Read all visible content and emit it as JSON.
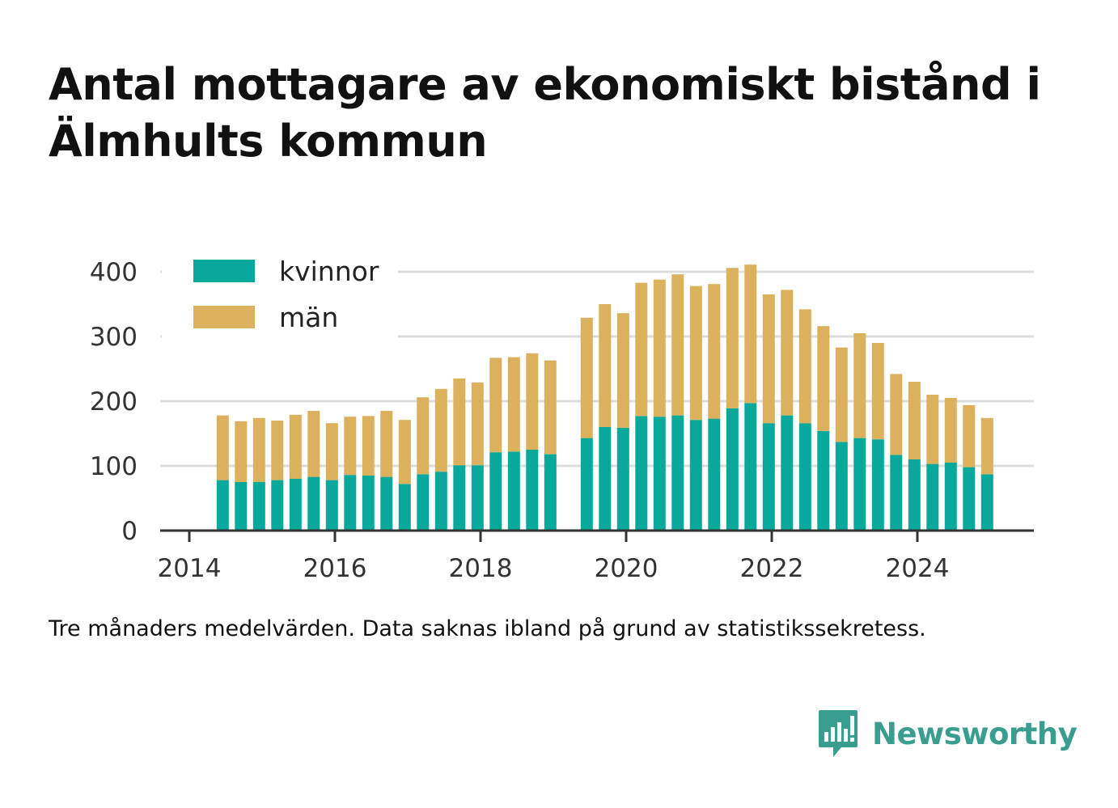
{
  "title": "Antal mottagare av ekonomiskt bistånd i Älmhults kommun",
  "footnote": "Tre månaders medelvärden. Data saknas ibland på grund av statistikssekretess.",
  "brand": {
    "name": "Newsworthy",
    "icon": "newsworthy-logo-icon"
  },
  "colors": {
    "kvinnor": "#08a89b",
    "man": "#dcb15e",
    "grid": "#dddddd",
    "axis": "#333333"
  },
  "chart_data": {
    "type": "bar",
    "stacked": true,
    "title": "Antal mottagare av ekonomiskt bistånd i Älmhults kommun",
    "xlabel": "",
    "ylabel": "",
    "ylim": [
      0,
      400
    ],
    "y_ticks": [
      "0",
      "100",
      "200",
      "300",
      "400"
    ],
    "x_ticks": [
      "2014",
      "2016",
      "2018",
      "2020",
      "2022",
      "2024"
    ],
    "grid": true,
    "legend_position": "top-left",
    "categories": [
      "2014-06",
      "2014-09",
      "2014-12",
      "2015-03",
      "2015-06",
      "2015-09",
      "2015-12",
      "2016-03",
      "2016-06",
      "2016-09",
      "2016-12",
      "2017-03",
      "2017-06",
      "2017-09",
      "2017-12",
      "2018-03",
      "2018-06",
      "2018-09",
      "2018-12",
      "2019-06",
      "2019-09",
      "2019-12",
      "2020-03",
      "2020-06",
      "2020-09",
      "2020-12",
      "2021-03",
      "2021-06",
      "2021-09",
      "2021-12",
      "2022-03",
      "2022-06",
      "2022-09",
      "2022-12",
      "2023-03",
      "2023-06",
      "2023-09",
      "2023-12",
      "2024-03",
      "2024-06",
      "2024-09",
      "2024-12"
    ],
    "series": [
      {
        "name": "kvinnor",
        "values": [
          78,
          75,
          75,
          78,
          80,
          83,
          78,
          86,
          85,
          83,
          72,
          87,
          91,
          101,
          101,
          121,
          122,
          125,
          118,
          143,
          160,
          159,
          177,
          176,
          178,
          171,
          173,
          189,
          197,
          166,
          178,
          166,
          154,
          137,
          143,
          141,
          117,
          110,
          103,
          105,
          98,
          87
        ]
      },
      {
        "name": "män",
        "values": [
          100,
          94,
          99,
          92,
          99,
          102,
          88,
          90,
          92,
          102,
          99,
          119,
          128,
          134,
          128,
          146,
          146,
          149,
          145,
          186,
          190,
          177,
          206,
          212,
          218,
          207,
          208,
          217,
          214,
          199,
          194,
          176,
          162,
          146,
          162,
          149,
          125,
          120,
          107,
          100,
          96,
          87
        ]
      }
    ]
  }
}
